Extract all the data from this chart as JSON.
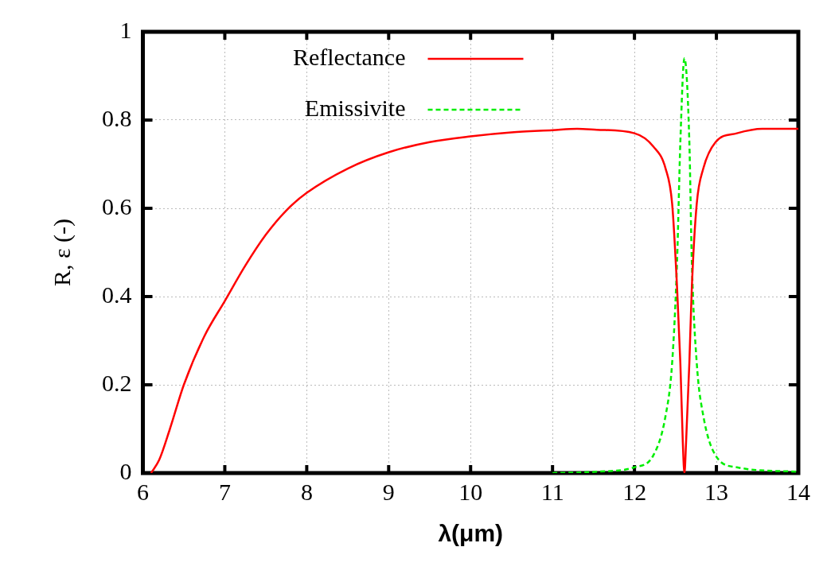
{
  "chart_data": {
    "type": "line",
    "xlabel": "λ(μm)",
    "ylabel": "R, ε (-)",
    "xlim": [
      6,
      14
    ],
    "xticks": [
      6,
      7,
      8,
      9,
      10,
      11,
      12,
      13,
      14
    ],
    "ylim": [
      0,
      1
    ],
    "yticks": [
      0,
      0.2,
      0.4,
      0.6,
      0.8,
      1
    ],
    "grid": true,
    "legend": "top",
    "marker": "none",
    "series": [
      {
        "name": "Reflectance",
        "color": "#ff0000",
        "line_style": "solid",
        "x": [
          6.1,
          6.2,
          6.33,
          6.5,
          6.75,
          7,
          7.25,
          7.5,
          7.75,
          8,
          8.5,
          9,
          9.5,
          10,
          10.5,
          11,
          11.3,
          11.54,
          12,
          12.23,
          12.38,
          12.46,
          12.52,
          12.56,
          12.59,
          12.61,
          12.63,
          12.67,
          12.7,
          12.76,
          12.84,
          12.99,
          13.25,
          13.56,
          14
        ],
        "values": [
          0,
          0.03,
          0.1,
          0.2,
          0.31,
          0.39,
          0.47,
          0.54,
          0.595,
          0.635,
          0.69,
          0.727,
          0.75,
          0.763,
          0.772,
          0.777,
          0.78,
          0.778,
          0.77,
          0.74,
          0.69,
          0.61,
          0.42,
          0.25,
          0.07,
          0,
          0.07,
          0.25,
          0.42,
          0.61,
          0.69,
          0.75,
          0.77,
          0.78,
          0.78
        ]
      },
      {
        "name": "Emissivite",
        "color": "#00ee00",
        "line_style": "dashed",
        "x": [
          11,
          11.54,
          12,
          12.23,
          12.38,
          12.46,
          12.52,
          12.56,
          12.61,
          12.67,
          12.7,
          12.76,
          12.84,
          12.99,
          13.25,
          14
        ],
        "values": [
          0,
          0.003,
          0.013,
          0.04,
          0.13,
          0.25,
          0.48,
          0.75,
          0.94,
          0.75,
          0.48,
          0.25,
          0.13,
          0.04,
          0.013,
          0.003
        ]
      }
    ]
  }
}
